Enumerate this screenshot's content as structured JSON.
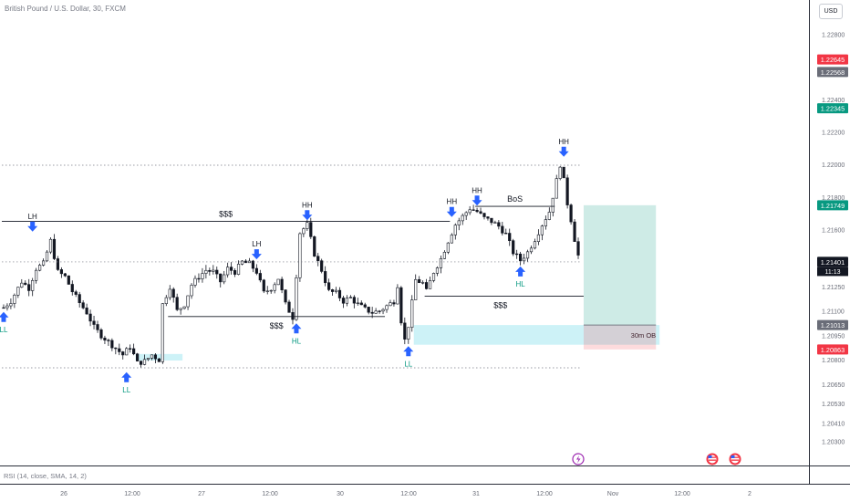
{
  "header": {
    "symbol_title": "British Pound / U.S. Dollar, 30, FXCM",
    "currency_button": "USD"
  },
  "indicator": {
    "rsi_label": "RSI (14, close, SMA, 14, 2)"
  },
  "chart_data": {
    "type": "candlestick",
    "y_scale": {
      "min": 1.2015,
      "max": 1.2301
    },
    "y_ticks": [
      "1.22800",
      "1.22400",
      "1.22200",
      "1.22000",
      "1.21800",
      "1.21600",
      "1.21250",
      "1.21100",
      "1.20950",
      "1.20800",
      "1.20650",
      "1.20530",
      "1.20410",
      "1.20300"
    ],
    "price_tags": [
      {
        "value": "1.22645",
        "color": "#f23645"
      },
      {
        "value": "1.22568",
        "color": "#6a6d78"
      },
      {
        "value": "1.22345",
        "color": "#089981"
      },
      {
        "value": "1.21749",
        "color": "#089981"
      },
      {
        "value": "1.21401",
        "color": "#131722",
        "countdown": "11:13"
      },
      {
        "value": "1.21013",
        "color": "#6a6d78"
      },
      {
        "value": "1.20863",
        "color": "#f23645"
      }
    ],
    "x_ticks": [
      "26",
      "12:00",
      "27",
      "12:00",
      "30",
      "12:00",
      "31",
      "12:00",
      "Nov",
      "12:00",
      "2"
    ],
    "price_path": [
      [
        0,
        1.2112
      ],
      [
        2,
        1.2116
      ],
      [
        5,
        1.2128
      ],
      [
        7,
        1.2124
      ],
      [
        9,
        1.2136
      ],
      [
        11,
        1.2139
      ],
      [
        13,
        1.2153
      ],
      [
        15,
        1.2134
      ],
      [
        17,
        1.2131
      ],
      [
        19,
        1.2122
      ],
      [
        21,
        1.2115
      ],
      [
        23,
        1.2109
      ],
      [
        25,
        1.21
      ],
      [
        27,
        1.2095
      ],
      [
        29,
        1.2091
      ],
      [
        31,
        1.2087
      ],
      [
        33,
        1.2083
      ],
      [
        35,
        1.2088
      ],
      [
        37,
        1.2078
      ],
      [
        39,
        1.2079
      ],
      [
        41,
        1.2083
      ],
      [
        43,
        1.208
      ],
      [
        44,
        1.2114
      ],
      [
        46,
        1.2125
      ],
      [
        48,
        1.211
      ],
      [
        50,
        1.2114
      ],
      [
        52,
        1.2126
      ],
      [
        54,
        1.2131
      ],
      [
        56,
        1.2135
      ],
      [
        58,
        1.2134
      ],
      [
        60,
        1.2128
      ],
      [
        62,
        1.2136
      ],
      [
        64,
        1.2134
      ],
      [
        66,
        1.214
      ],
      [
        68,
        1.2139
      ],
      [
        70,
        1.2134
      ],
      [
        72,
        1.2121
      ],
      [
        74,
        1.2124
      ],
      [
        76,
        1.213
      ],
      [
        78,
        1.2114
      ],
      [
        80,
        1.2106
      ],
      [
        82,
        1.2158
      ],
      [
        84,
        1.2163
      ],
      [
        86,
        1.2145
      ],
      [
        88,
        1.2135
      ],
      [
        90,
        1.2122
      ],
      [
        92,
        1.2121
      ],
      [
        94,
        1.2116
      ],
      [
        96,
        1.2118
      ],
      [
        98,
        1.2114
      ],
      [
        100,
        1.2111
      ],
      [
        102,
        1.2109
      ],
      [
        104,
        1.211
      ],
      [
        106,
        1.2113
      ],
      [
        108,
        1.2116
      ],
      [
        109,
        1.2126
      ],
      [
        110,
        1.2104
      ],
      [
        111,
        1.2092
      ],
      [
        112,
        1.2101
      ],
      [
        114,
        1.2129
      ],
      [
        116,
        1.2127
      ],
      [
        117,
        1.2122
      ],
      [
        119,
        1.2134
      ],
      [
        121,
        1.2142
      ],
      [
        123,
        1.2153
      ],
      [
        125,
        1.2163
      ],
      [
        127,
        1.2168
      ],
      [
        129,
        1.2173
      ],
      [
        131,
        1.2171
      ],
      [
        133,
        1.2167
      ],
      [
        135,
        1.2165
      ],
      [
        137,
        1.2162
      ],
      [
        139,
        1.2157
      ],
      [
        141,
        1.2146
      ],
      [
        143,
        1.2141
      ],
      [
        145,
        1.2146
      ],
      [
        147,
        1.2154
      ],
      [
        149,
        1.2163
      ],
      [
        151,
        1.2171
      ],
      [
        153,
        1.219
      ],
      [
        154,
        1.22
      ],
      [
        155,
        1.219
      ],
      [
        156,
        1.2176
      ],
      [
        157,
        1.2166
      ],
      [
        158,
        1.2154
      ],
      [
        159,
        1.2144
      ],
      [
        160,
        1.214
      ]
    ],
    "bar_count": 160,
    "horizontal_lines": [
      {
        "y": 1.21995,
        "style": "dotted",
        "x_from": 0,
        "x_to": 160
      },
      {
        "y": 1.21401,
        "style": "dotted",
        "x_from": 0,
        "x_to": 160
      },
      {
        "y": 1.2075,
        "style": "dotted",
        "x_from": 0,
        "x_to": 160
      },
      {
        "y": 1.2165,
        "style": "solid",
        "x_from": 0,
        "x_to": 124,
        "label": "$$$",
        "label_x": 62
      },
      {
        "y": 1.21065,
        "style": "solid",
        "x_from": 46,
        "x_to": 106,
        "label": "$$$",
        "label_x": 76,
        "label_below": true
      },
      {
        "y": 1.2119,
        "style": "solid",
        "x_from": 117,
        "x_to": 161,
        "label": "$$$",
        "label_x": 138,
        "label_below": true
      },
      {
        "y": 1.21742,
        "style": "solid",
        "x_from": 131,
        "x_to": 153,
        "label": "BoS",
        "label_x": 142
      }
    ],
    "zones": [
      {
        "name": "30m OB",
        "y_top": 1.21013,
        "y_bottom": 1.20892,
        "x_from": 114,
        "x_to": 182,
        "color": "#b2ebf2"
      },
      {
        "name": "",
        "y_top": 1.20835,
        "y_bottom": 1.20795,
        "x_from": 37,
        "x_to": 50,
        "color": "#b2ebf2"
      }
    ],
    "position": {
      "x_from": 161,
      "x_to": 181,
      "entry": 1.21013,
      "target": 1.21749,
      "stop": 1.20863
    },
    "markers": [
      {
        "label": "LH",
        "x": 8,
        "y": 1.2157,
        "dir": "down"
      },
      {
        "label": "LL",
        "x": 0,
        "y": 1.2111,
        "dir": "up"
      },
      {
        "label": "LL",
        "x": 34,
        "y": 1.2074,
        "dir": "up"
      },
      {
        "label": "LH",
        "x": 70,
        "y": 1.214,
        "dir": "down"
      },
      {
        "label": "HH",
        "x": 84,
        "y": 1.2164,
        "dir": "down"
      },
      {
        "label": "HL",
        "x": 81,
        "y": 1.2104,
        "dir": "up"
      },
      {
        "label": "LL",
        "x": 112,
        "y": 1.209,
        "dir": "up"
      },
      {
        "label": "HH",
        "x": 124,
        "y": 1.2166,
        "dir": "down"
      },
      {
        "label": "HH",
        "x": 131,
        "y": 1.2173,
        "dir": "down"
      },
      {
        "label": "HL",
        "x": 143,
        "y": 1.2139,
        "dir": "up"
      },
      {
        "label": "HH",
        "x": 155,
        "y": 1.2203,
        "dir": "down"
      }
    ]
  }
}
